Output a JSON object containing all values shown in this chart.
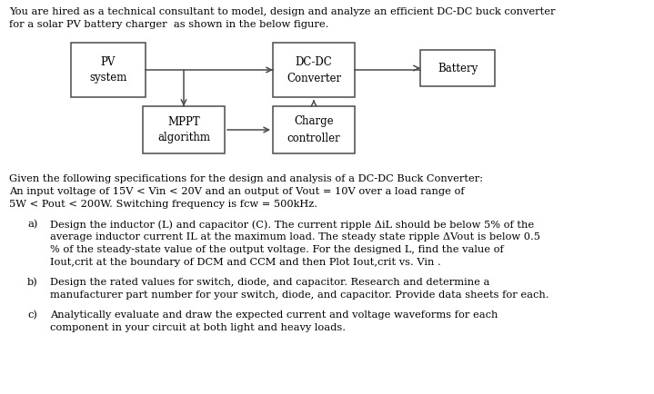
{
  "background_color": "#ffffff",
  "fig_width": 7.19,
  "fig_height": 4.34,
  "dpi": 100,
  "intro_line1": "You are hired as a technical consultant to model, design and analyze an efficient DC-DC buck converter",
  "intro_line2": "for a solar PV battery charger  as shown in the below figure.",
  "box_pv": "PV\nsystem",
  "box_dcdc": "DC-DC\nConverter",
  "box_battery": "Battery",
  "box_mppt": "MPPT\nalgorithm",
  "box_charge": "Charge\ncontroller",
  "specs_line1": "Given the following specifications for the design and analysis of a DC-DC Buck Converter:",
  "specs_line2": "An input voltage of 15V < Vin < 20V and an output of Vout = 10V over a load range of",
  "specs_line3": "5W < Pout < 200W. Switching frequency is fcw = 500kHz.",
  "item_a_label": "a)",
  "item_a_l1": "Design the inductor (L) and capacitor (C). The current ripple ΔiL should be below 5% of the",
  "item_a_l2": "average inductor current IL at the maximum load. The steady state ripple ΔVout is below 0.5",
  "item_a_l3": "% of the steady-state value of the output voltage. For the designed L, find the value of",
  "item_a_l4": "Iout,crit at the boundary of DCM and CCM and then Plot Iout,crit vs. Vin .",
  "item_b_label": "b)",
  "item_b_l1": "Design the rated values for switch, diode, and capacitor. Research and determine a",
  "item_b_l2": "manufacturer part number for your switch, diode, and capacitor. Provide data sheets for each.",
  "item_c_label": "c)",
  "item_c_l1": "Analytically evaluate and draw the expected current and voltage waveforms for each",
  "item_c_l2": "component in your circuit at both light and heavy loads.",
  "font_size": 8.2,
  "font_size_box": 8.5,
  "text_color": "#000000",
  "box_edge_color": "#4a4a4a",
  "box_face_color": "#ffffff",
  "arrow_color": "#4a4a4a",
  "font_family": "serif"
}
